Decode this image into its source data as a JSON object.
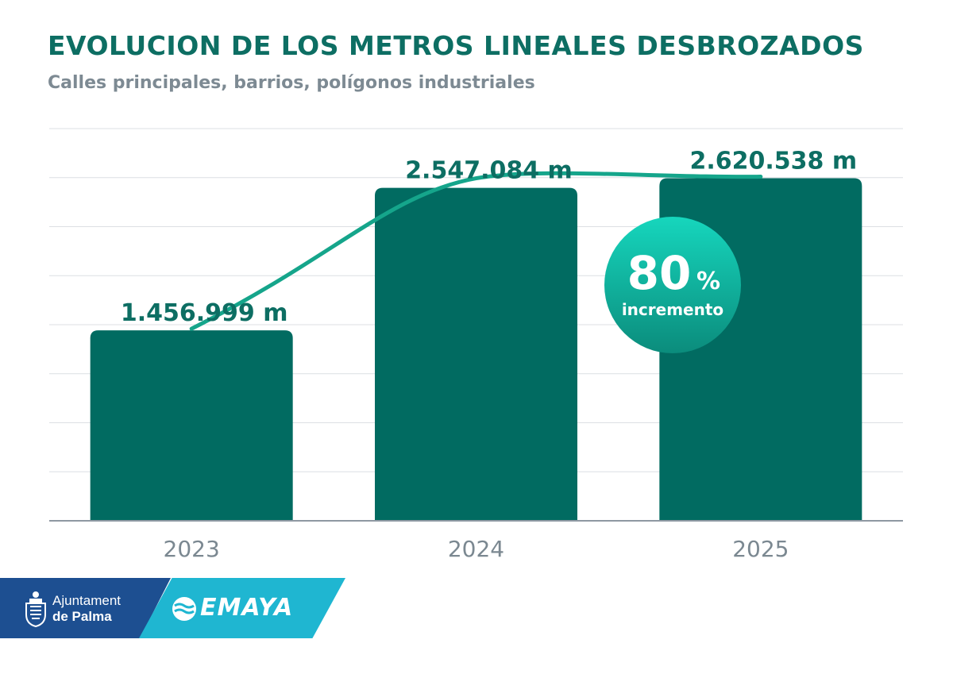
{
  "header": {
    "title": "EVOLUCION DE LOS METROS LINEALES DESBROZADOS",
    "subtitle": "Calles principales, barrios, polígonos industriales"
  },
  "chart_data": {
    "type": "bar",
    "title": "EVOLUCION DE LOS METROS LINEALES DESBROZADOS",
    "subtitle": "Calles principales, barrios, polígonos industriales",
    "categories": [
      "2023",
      "2024",
      "2025"
    ],
    "values": [
      1456999,
      2547084,
      2620538
    ],
    "value_labels": [
      "1.456.999 m",
      "2.547.084 m",
      "2.620.538 m"
    ],
    "xlabel": "",
    "ylabel": "",
    "ylim": [
      0,
      3000000
    ],
    "grid": true,
    "trend_line": true,
    "annotation": {
      "number": "80",
      "unit": "%",
      "text": "incremento"
    },
    "colors": {
      "bar": "#016b61",
      "trend": "#15a58b",
      "badge": "#13b39b"
    }
  },
  "footer": {
    "ajuntament_line1": "Ajuntament",
    "ajuntament_line2": "de Palma",
    "emaya": "EMAYA"
  }
}
